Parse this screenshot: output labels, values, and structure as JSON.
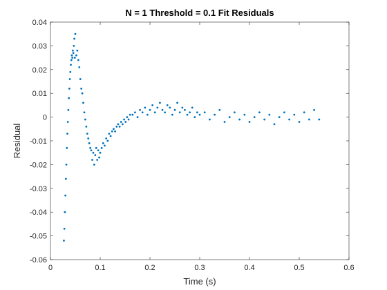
{
  "chart_data": {
    "type": "scatter",
    "title": "N = 1 Threshold = 0.1 Fit Residuals",
    "x_label": "Time (s)",
    "y_label": "Residual",
    "color": "#0072bd",
    "xlim": [
      0,
      0.6
    ],
    "ylim": [
      -0.06,
      0.04
    ],
    "xticks": [
      0,
      0.1,
      0.2,
      0.3,
      0.4,
      0.5,
      0.6
    ],
    "yticks": [
      -0.06,
      -0.05,
      -0.04,
      -0.03,
      -0.02,
      -0.01,
      0,
      0.01,
      0.02,
      0.03,
      0.04
    ],
    "x": [
      0.027,
      0.028,
      0.029,
      0.03,
      0.031,
      0.032,
      0.033,
      0.034,
      0.035,
      0.036,
      0.037,
      0.038,
      0.039,
      0.04,
      0.041,
      0.042,
      0.043,
      0.044,
      0.045,
      0.046,
      0.047,
      0.048,
      0.049,
      0.05,
      0.052,
      0.054,
      0.056,
      0.058,
      0.06,
      0.062,
      0.064,
      0.066,
      0.068,
      0.07,
      0.072,
      0.074,
      0.076,
      0.078,
      0.08,
      0.082,
      0.084,
      0.086,
      0.088,
      0.09,
      0.092,
      0.094,
      0.096,
      0.098,
      0.1,
      0.103,
      0.106,
      0.109,
      0.112,
      0.115,
      0.118,
      0.121,
      0.124,
      0.127,
      0.13,
      0.133,
      0.136,
      0.139,
      0.142,
      0.145,
      0.148,
      0.151,
      0.154,
      0.157,
      0.16,
      0.165,
      0.17,
      0.175,
      0.18,
      0.185,
      0.19,
      0.195,
      0.2,
      0.205,
      0.21,
      0.215,
      0.22,
      0.225,
      0.23,
      0.235,
      0.24,
      0.245,
      0.25,
      0.255,
      0.26,
      0.265,
      0.27,
      0.275,
      0.28,
      0.285,
      0.29,
      0.295,
      0.3,
      0.31,
      0.32,
      0.33,
      0.34,
      0.35,
      0.36,
      0.37,
      0.38,
      0.39,
      0.4,
      0.41,
      0.42,
      0.43,
      0.44,
      0.45,
      0.46,
      0.47,
      0.48,
      0.49,
      0.5,
      0.51,
      0.52,
      0.53,
      0.54
    ],
    "values": [
      -0.052,
      -0.047,
      -0.04,
      -0.033,
      -0.026,
      -0.02,
      -0.013,
      -0.007,
      -0.002,
      0.003,
      0.008,
      0.012,
      0.016,
      0.019,
      0.022,
      0.024,
      0.026,
      0.025,
      0.028,
      0.027,
      0.03,
      0.033,
      0.025,
      0.035,
      0.026,
      0.028,
      0.024,
      0.021,
      0.016,
      0.012,
      0.01,
      0.006,
      0.002,
      -0.001,
      -0.004,
      -0.007,
      -0.009,
      -0.011,
      -0.013,
      -0.014,
      -0.018,
      -0.015,
      -0.02,
      -0.016,
      -0.013,
      -0.018,
      -0.014,
      -0.017,
      -0.015,
      -0.013,
      -0.011,
      -0.012,
      -0.009,
      -0.01,
      -0.007,
      -0.008,
      -0.006,
      -0.005,
      -0.006,
      -0.004,
      -0.003,
      -0.004,
      -0.002,
      -0.003,
      -0.001,
      -0.002,
      0.0,
      -0.001,
      0.001,
      0.001,
      0.002,
      0.0,
      0.003,
      0.002,
      0.004,
      0.001,
      0.003,
      0.005,
      0.002,
      0.004,
      0.006,
      0.003,
      0.002,
      0.005,
      0.004,
      0.001,
      0.003,
      0.006,
      0.002,
      0.004,
      0.003,
      0.001,
      0.002,
      0.004,
      0.0,
      0.002,
      0.001,
      0.002,
      -0.001,
      0.001,
      0.003,
      -0.002,
      0.0,
      0.002,
      -0.001,
      0.001,
      -0.002,
      0.0,
      0.002,
      -0.001,
      0.001,
      -0.003,
      0.0,
      0.002,
      -0.001,
      0.001,
      -0.002,
      0.002,
      -0.001,
      0.003,
      -0.001
    ]
  }
}
